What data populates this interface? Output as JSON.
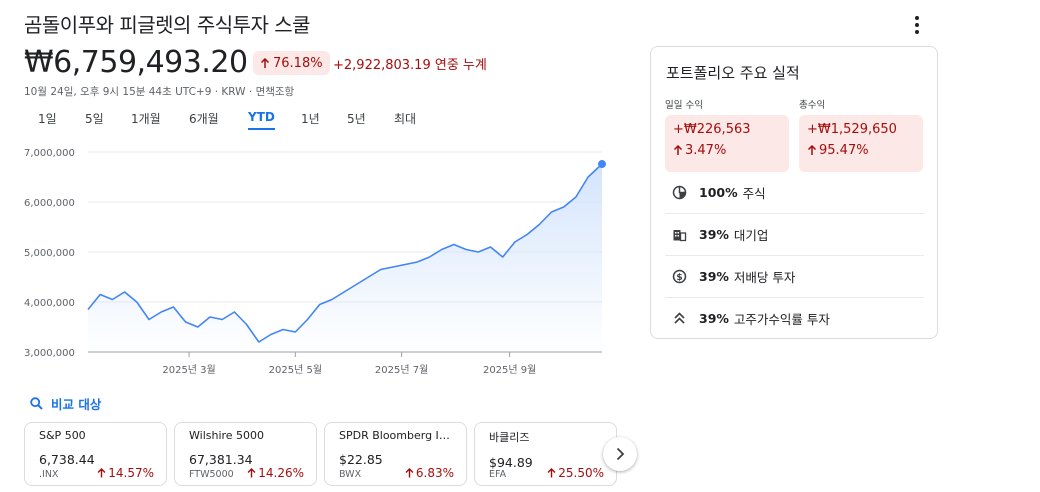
{
  "header": {
    "title": "곰돌이푸와 피글렛의 주식투자 스쿨",
    "price": "₩6,759,493.20",
    "change_pct": "76.18%",
    "change_amount": "+2,922,803.19 연중 누계",
    "subline": "10월 24일, 오후 9시 15분 44초 UTC+9 · KRW · 면책조항",
    "more_icon": "more-vert-icon"
  },
  "ranges": [
    {
      "label": "1일",
      "active": false
    },
    {
      "label": "5일",
      "active": false
    },
    {
      "label": "1개월",
      "active": false
    },
    {
      "label": "6개월",
      "active": false
    },
    {
      "label": "YTD",
      "active": true
    },
    {
      "label": "1년",
      "active": false
    },
    {
      "label": "5년",
      "active": false
    },
    {
      "label": "최대",
      "active": false
    }
  ],
  "chart_data": {
    "type": "area",
    "title": "",
    "xlabel": "",
    "ylabel": "",
    "ylim": [
      3000000,
      7000000
    ],
    "yticks": [
      3000000,
      4000000,
      5000000,
      6000000,
      7000000
    ],
    "ytick_labels": [
      "3,000,000",
      "4,000,000",
      "5,000,000",
      "6,000,000",
      "7,000,000"
    ],
    "xtick_labels": [
      "2025년 3월",
      "2025년 5월",
      "2025년 7월",
      "2025년 9월"
    ],
    "xtick_dates": [
      "2025-03-01",
      "2025-05-01",
      "2025-07-01",
      "2025-09-01"
    ],
    "x_start": "2025-01-02",
    "x_end": "2025-10-24",
    "grid": true,
    "line_color": "#4285f4",
    "fill_color": "#d2e3fc",
    "series": [
      {
        "x": [
          "2025-01-02",
          "2025-01-09",
          "2025-01-16",
          "2025-01-23",
          "2025-01-30",
          "2025-02-06",
          "2025-02-13",
          "2025-02-20",
          "2025-02-27",
          "2025-03-06",
          "2025-03-13",
          "2025-03-20",
          "2025-03-27",
          "2025-04-03",
          "2025-04-10",
          "2025-04-17",
          "2025-04-24",
          "2025-05-01",
          "2025-05-08",
          "2025-05-15",
          "2025-05-22",
          "2025-05-29",
          "2025-06-05",
          "2025-06-12",
          "2025-06-19",
          "2025-06-26",
          "2025-07-03",
          "2025-07-10",
          "2025-07-17",
          "2025-07-24",
          "2025-07-31",
          "2025-08-07",
          "2025-08-14",
          "2025-08-21",
          "2025-08-28",
          "2025-09-04",
          "2025-09-11",
          "2025-09-18",
          "2025-09-25",
          "2025-10-02",
          "2025-10-09",
          "2025-10-16",
          "2025-10-24"
        ],
        "values": [
          3850000,
          4150000,
          4050000,
          4200000,
          4000000,
          3650000,
          3800000,
          3900000,
          3600000,
          3500000,
          3700000,
          3650000,
          3800000,
          3550000,
          3200000,
          3350000,
          3450000,
          3400000,
          3650000,
          3950000,
          4050000,
          4200000,
          4350000,
          4500000,
          4650000,
          4700000,
          4750000,
          4800000,
          4900000,
          5050000,
          5150000,
          5050000,
          5000000,
          5100000,
          4900000,
          5200000,
          5350000,
          5550000,
          5800000,
          5900000,
          6100000,
          6500000,
          6759493
        ]
      }
    ]
  },
  "compare": {
    "label": "비교 대상",
    "icon": "search-icon"
  },
  "cards": [
    {
      "name": "S&P 500",
      "price": "6,738.44",
      "ticker": ".INX",
      "change": "14.57%"
    },
    {
      "name": "Wilshire 5000",
      "price": "67,381.34",
      "ticker": "FTW5000",
      "change": "14.26%"
    },
    {
      "name": "SPDR Bloomberg Intern...",
      "price": "$22.85",
      "ticker": "BWX",
      "change": "6.83%"
    },
    {
      "name": "바클리즈",
      "price": "$94.89",
      "ticker": "EFA",
      "change": "25.50%"
    }
  ],
  "panel": {
    "title": "포트폴리오 주요 실적",
    "daily": {
      "label": "일일 수익",
      "amount": "+₩226,563",
      "pct": "3.47%"
    },
    "total": {
      "label": "총수익",
      "amount": "+₩1,529,650",
      "pct": "95.47%"
    },
    "stats": [
      {
        "pct": "100%",
        "label": "주식",
        "icon": "pie-chart-icon"
      },
      {
        "pct": "39%",
        "label": "대기업",
        "icon": "building-icon"
      },
      {
        "pct": "39%",
        "label": "저배당 투자",
        "icon": "dollar-circle-icon"
      },
      {
        "pct": "39%",
        "label": "고주가수익률 투자",
        "icon": "double-chevron-up-icon"
      }
    ]
  },
  "colors": {
    "positive_text": "#a50e0e",
    "positive_bg": "#fce8e6",
    "accent": "#1a73e8"
  }
}
